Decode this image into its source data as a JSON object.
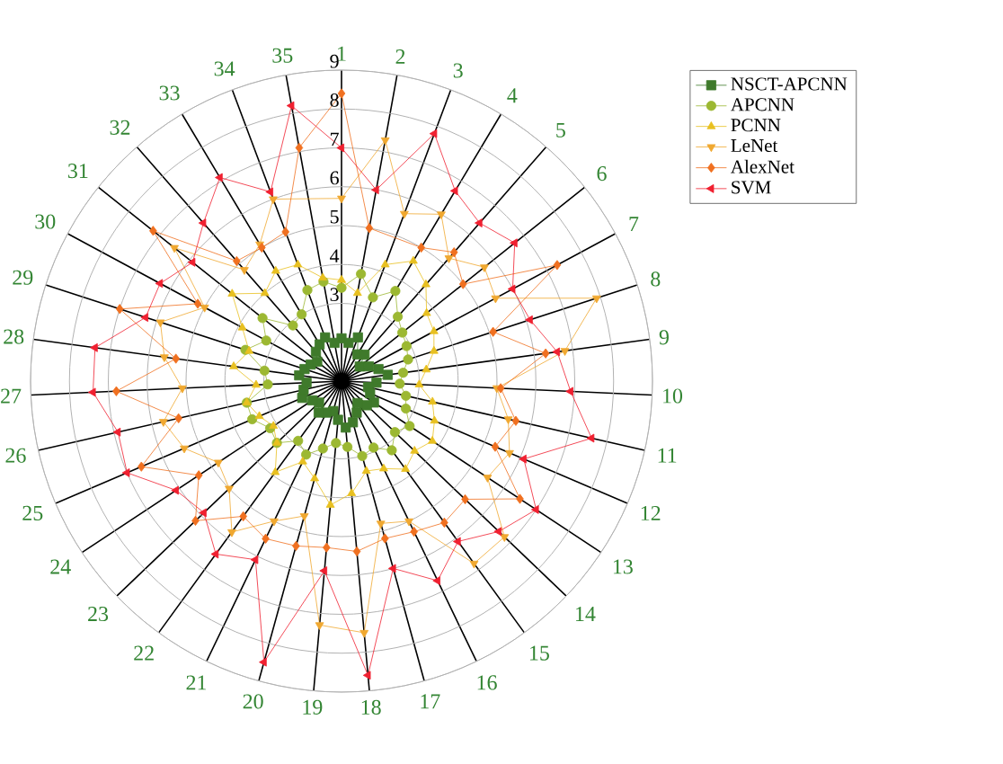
{
  "chart_data": {
    "type": "radar",
    "categories": [
      "1",
      "2",
      "3",
      "4",
      "5",
      "6",
      "7",
      "8",
      "9",
      "10",
      "11",
      "12",
      "13",
      "14",
      "15",
      "16",
      "17",
      "18",
      "19",
      "20",
      "21",
      "22",
      "23",
      "24",
      "25",
      "26",
      "27",
      "28",
      "29",
      "30",
      "31",
      "32",
      "33",
      "34",
      "35"
    ],
    "ylim": [
      1,
      9
    ],
    "yticks": [
      3,
      4,
      5,
      6,
      7,
      8,
      9
    ],
    "grid": true,
    "legend": "top right",
    "series": [
      {
        "name": "NSCT-APCNN",
        "color": "#3f7a2b",
        "marker": "square",
        "values": [
          2.1,
          2.0,
          2.2,
          1.8,
          1.9,
          1.6,
          1.8,
          2.0,
          2.2,
          1.9,
          1.7,
          1.8,
          2.0,
          1.9,
          1.7,
          1.9,
          2.1,
          2.2,
          2.0,
          1.8,
          1.9,
          2.0,
          1.8,
          1.9,
          2.1,
          2.0,
          1.9,
          2.1,
          2.0,
          1.9,
          1.8,
          2.0,
          2.1,
          2.2,
          2.0
        ]
      },
      {
        "name": "APCNN",
        "color": "#9cb832",
        "marker": "circle",
        "values": [
          3.4,
          3.8,
          3.3,
          3.7,
          3.2,
          3.0,
          2.9,
          2.8,
          2.6,
          2.5,
          2.7,
          2.8,
          3.1,
          2.9,
          3.2,
          2.9,
          3.0,
          2.7,
          2.6,
          2.8,
          3.1,
          2.9,
          3.3,
          3.2,
          3.5,
          3.5,
          2.9,
          3.0,
          3.6,
          3.2,
          3.6,
          2.9,
          3.0,
          3.5,
          3.6
        ]
      },
      {
        "name": "PCNN",
        "color": "#e8c020",
        "marker": "triangle",
        "values": [
          3.6,
          3.3,
          4.2,
          4.6,
          4.3,
          3.8,
          3.7,
          3.5,
          3.2,
          3.0,
          3.4,
          3.6,
          3.8,
          3.6,
          3.8,
          3.5,
          3.4,
          3.9,
          4.2,
          3.6,
          3.3,
          3.9,
          3.3,
          3.1,
          3.3,
          3.5,
          3.2,
          3.8,
          3.5,
          3.9,
          4.6,
          4.0,
          4.3,
          4.2,
          3.7
        ]
      },
      {
        "name": "LeNet",
        "color": "#f0a830",
        "marker": "triangle-down",
        "values": [
          5.7,
          7.3,
          5.6,
          6.0,
          5.2,
          5.7,
          5.5,
          7.9,
          6.8,
          5.0,
          5.4,
          5.7,
          5.5,
          6.8,
          6.8,
          5.0,
          4.8,
          7.5,
          7.3,
          4.6,
          5.0,
          5.8,
          5.0,
          4.8,
          5.4,
          5.7,
          5.1,
          5.6,
          5.9,
          5.0,
          6.5,
          4.8,
          5.1,
          6.0,
          null
        ]
      },
      {
        "name": "AlexNet",
        "color": "#f07020",
        "marker": "diamond",
        "values": [
          8.4,
          5.0,
          null,
          5.0,
          5.4,
          5.0,
          7.3,
          5.1,
          6.3,
          5.1,
          5.6,
          5.3,
          6.5,
          5.4,
          5.5,
          5.3,
          5.2,
          5.4,
          5.3,
          5.4,
          5.5,
          5.3,
          6.2,
          5.4,
          6.6,
          5.3,
          6.8,
          5.3,
          7.0,
          5.2,
          7.2,
          5.1,
          5.0,
          5.1,
          7.1
        ]
      },
      {
        "name": "SVM",
        "color": "#f02030",
        "marker": "triangle-left",
        "values": [
          7.0,
          6.0,
          7.8,
          6.7,
          6.4,
          6.7,
          6.0,
          6.1,
          6.6,
          6.9,
          7.6,
          6.1,
          7.0,
          6.6,
          6.1,
          6.7,
          6.0,
          8.6,
          5.9,
          8.5,
          6.1,
          6.5,
          5.9,
          6.1,
          7.0,
          6.9,
          7.4,
          7.4,
          6.3,
          6.3,
          5.9,
          6.4,
          7.1,
          6.2,
          8.2
        ]
      }
    ]
  }
}
